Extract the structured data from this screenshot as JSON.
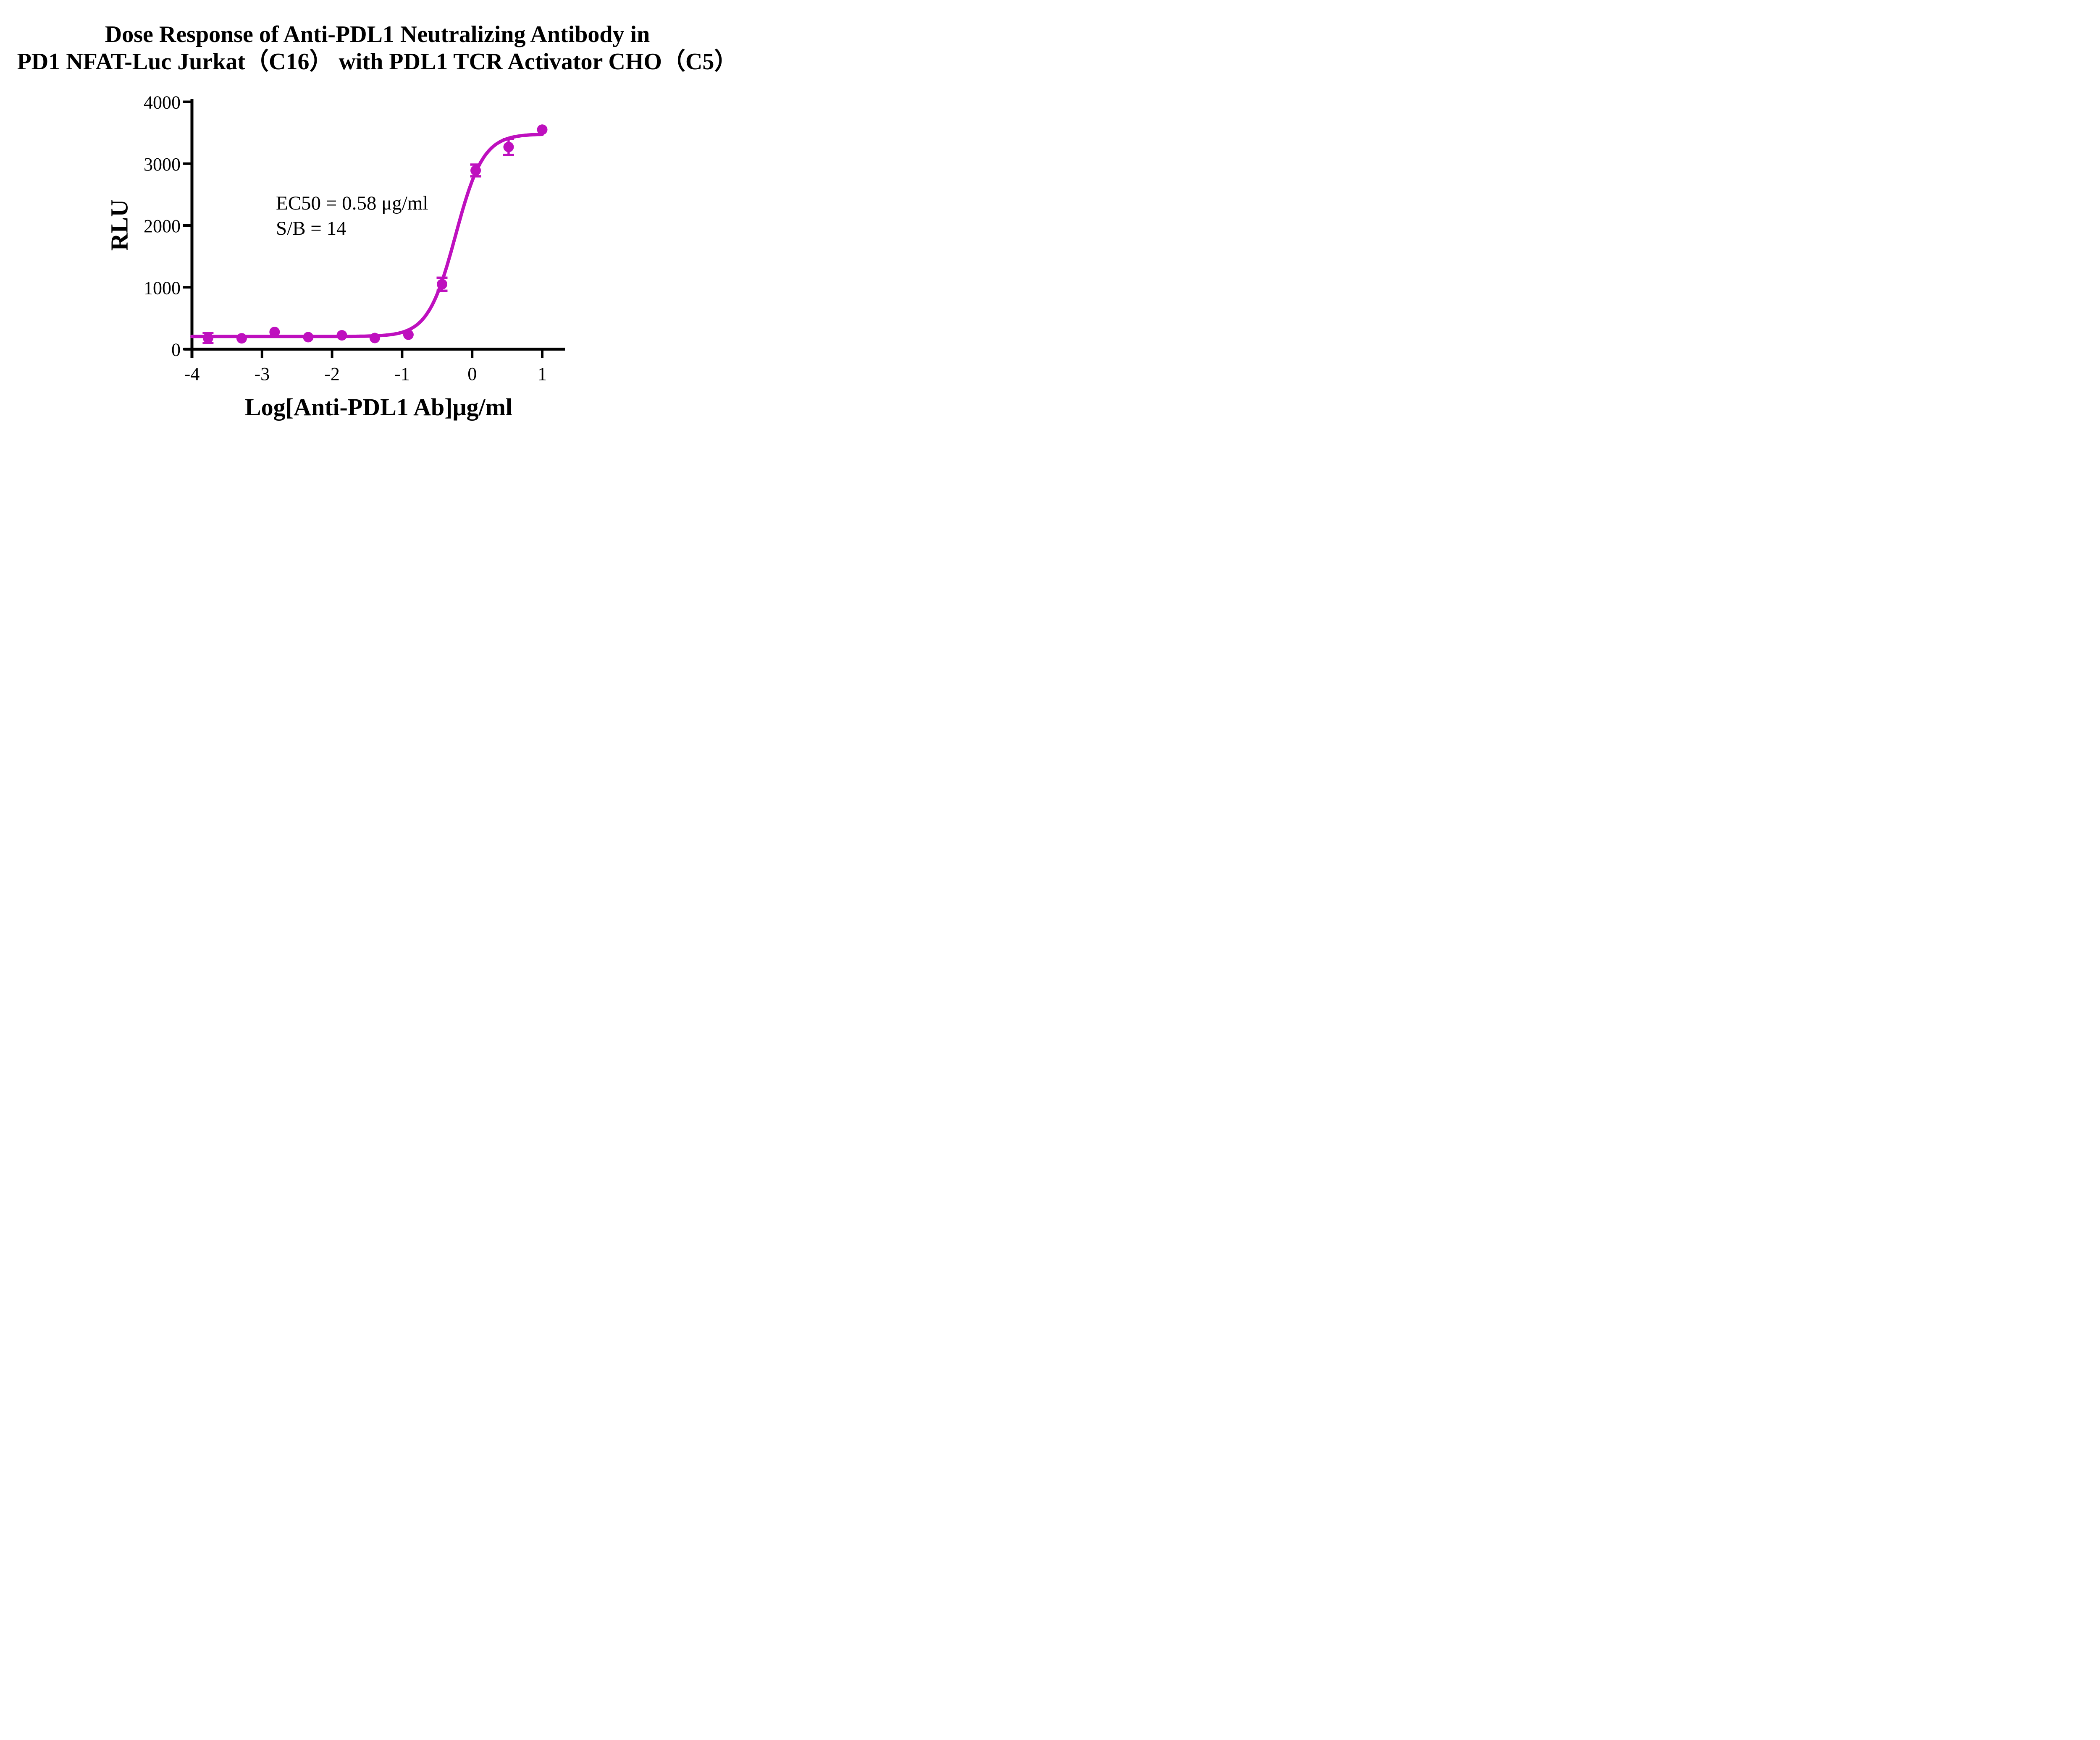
{
  "chart_data": {
    "type": "scatter",
    "title_line1": "Dose Response of Anti-PDL1 Neutralizing Antibody in",
    "title_line2": "PD1 NFAT-Luc Jurkat（C16） with PDL1 TCR Activator CHO（C5）",
    "xlabel": "Log[Anti-PDL1 Ab]μg/ml",
    "ylabel": "RLU",
    "annotation_line1": "EC50 = 0.58 μg/ml",
    "annotation_line2": "S/B = 14",
    "ec50_ug_ml": 0.58,
    "s_over_b": 14,
    "xlim": [
      -4,
      1
    ],
    "ylim": [
      0,
      4000
    ],
    "x_ticks": [
      -4,
      -3,
      -2,
      -1,
      0,
      1
    ],
    "y_ticks": [
      0,
      1000,
      2000,
      3000,
      4000
    ],
    "grid": false,
    "legend": "none",
    "series": [
      {
        "name": "Anti-PDL1 Ab",
        "color": "#BE10BE",
        "marker": "circle",
        "points": [
          {
            "x": -3.77,
            "y": 180,
            "err": 80
          },
          {
            "x": -3.29,
            "y": 175,
            "err": 0
          },
          {
            "x": -2.82,
            "y": 277,
            "err": 0
          },
          {
            "x": -2.34,
            "y": 194,
            "err": 0
          },
          {
            "x": -1.86,
            "y": 224,
            "err": 0
          },
          {
            "x": -1.39,
            "y": 180,
            "err": 0
          },
          {
            "x": -0.91,
            "y": 234,
            "err": 0
          },
          {
            "x": -0.43,
            "y": 1050,
            "err": 105
          },
          {
            "x": 0.05,
            "y": 2890,
            "err": 95
          },
          {
            "x": 0.52,
            "y": 3270,
            "err": 130
          },
          {
            "x": 1.0,
            "y": 3550,
            "err": 0
          }
        ],
        "fit": {
          "model": "4PL",
          "bottom": 205,
          "top": 3480,
          "log_ec50": -0.2366,
          "hill": 2.2
        }
      }
    ]
  }
}
